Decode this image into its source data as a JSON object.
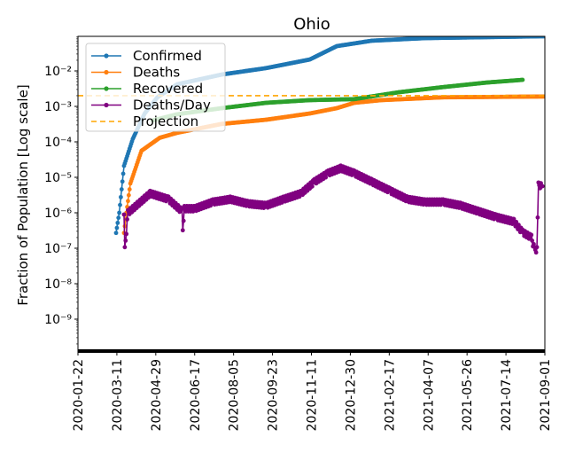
{
  "chart_data": {
    "type": "line",
    "title": "Ohio",
    "xlabel": "",
    "ylabel": "Fraction of Population [Log scale]",
    "yscale": "log",
    "ylim": [
      1.2e-10,
      0.09
    ],
    "xlim": [
      "2020-01-22",
      "2021-09-01"
    ],
    "x_ticks": [
      "2020-01-22",
      "2020-03-11",
      "2020-04-29",
      "2020-06-17",
      "2020-08-05",
      "2020-09-23",
      "2020-11-11",
      "2020-12-30",
      "2021-02-17",
      "2021-04-07",
      "2021-05-26",
      "2021-07-14",
      "2021-09-01"
    ],
    "y_ticks": [
      {
        "value": 0.01,
        "label": "10⁻²"
      },
      {
        "value": 0.001,
        "label": "10⁻³"
      },
      {
        "value": 0.0001,
        "label": "10⁻⁴"
      },
      {
        "value": 1e-05,
        "label": "10⁻⁵"
      },
      {
        "value": 1e-06,
        "label": "10⁻⁶"
      },
      {
        "value": 1e-07,
        "label": "10⁻⁷"
      },
      {
        "value": 1e-08,
        "label": "10⁻⁸"
      },
      {
        "value": 1e-09,
        "label": "10⁻⁹"
      }
    ],
    "legend": "top-left",
    "series": [
      {
        "name": "Confirmed",
        "color": "#1f77b4",
        "style": "line-marker",
        "points": [
          [
            "2020-03-10",
            2.7e-07
          ],
          [
            "2020-03-14",
            1e-06
          ],
          [
            "2020-03-20",
            2.1e-05
          ],
          [
            "2020-03-31",
            0.00012
          ],
          [
            "2020-04-15",
            0.00063
          ],
          [
            "2020-05-01",
            0.0018
          ],
          [
            "2020-05-26",
            0.0042
          ],
          [
            "2020-07-21",
            0.0079
          ],
          [
            "2020-09-15",
            0.012
          ],
          [
            "2020-11-09",
            0.021
          ],
          [
            "2020-12-13",
            0.05
          ],
          [
            "2021-01-26",
            0.071
          ],
          [
            "2021-04-03",
            0.084
          ],
          [
            "2021-09-01",
            0.095
          ]
        ]
      },
      {
        "name": "Deaths",
        "color": "#ff7f0e",
        "style": "line-marker",
        "points": [
          [
            "2020-03-20",
            2.7e-07
          ],
          [
            "2020-03-23",
            1e-06
          ],
          [
            "2020-03-28",
            6.7e-06
          ],
          [
            "2020-04-11",
            5.6e-05
          ],
          [
            "2020-05-04",
            0.00013
          ],
          [
            "2020-05-26",
            0.00018
          ],
          [
            "2020-07-21",
            0.00032
          ],
          [
            "2020-09-15",
            0.00042
          ],
          [
            "2020-11-09",
            0.00063
          ],
          [
            "2020-12-13",
            0.00089
          ],
          [
            "2021-01-04",
            0.00126
          ],
          [
            "2021-02-07",
            0.0015
          ],
          [
            "2021-04-26",
            0.0018
          ],
          [
            "2021-09-01",
            0.0019
          ]
        ]
      },
      {
        "name": "Recovered",
        "color": "#2ca02c",
        "style": "line-marker",
        "points": [
          [
            "2020-04-25",
            0.0004
          ],
          [
            "2020-05-26",
            0.0006
          ],
          [
            "2020-07-21",
            0.00089
          ],
          [
            "2020-09-15",
            0.00126
          ],
          [
            "2020-11-09",
            0.0015
          ],
          [
            "2021-01-04",
            0.0016
          ],
          [
            "2021-03-01",
            0.0025
          ],
          [
            "2021-04-26",
            0.0035
          ],
          [
            "2021-06-20",
            0.0047
          ],
          [
            "2021-08-04",
            0.0056
          ]
        ]
      },
      {
        "name": "Deaths/Day",
        "color": "#800080",
        "style": "line-marker-sparse",
        "points": [
          [
            "2020-03-20",
            7.5e-07
          ],
          [
            "2020-03-21",
            9e-08
          ],
          [
            "2020-03-25",
            1e-06
          ],
          [
            "2020-03-31",
            1.3e-06
          ],
          [
            "2020-04-22",
            3.5e-06
          ],
          [
            "2020-05-15",
            2.4e-06
          ],
          [
            "2020-06-01",
            1.1e-06
          ],
          [
            "2020-06-02",
            2.7e-07
          ],
          [
            "2020-06-04",
            1.3e-06
          ],
          [
            "2020-06-17",
            1.3e-06
          ],
          [
            "2020-07-10",
            2e-06
          ],
          [
            "2020-08-01",
            2.4e-06
          ],
          [
            "2020-08-23",
            1.8e-06
          ],
          [
            "2020-09-15",
            1.6e-06
          ],
          [
            "2020-10-07",
            2.4e-06
          ],
          [
            "2020-10-29",
            3.5e-06
          ],
          [
            "2020-11-15",
            7.5e-06
          ],
          [
            "2020-12-02",
            1.3e-05
          ],
          [
            "2020-12-18",
            1.8e-05
          ],
          [
            "2021-01-04",
            1.3e-05
          ],
          [
            "2021-01-26",
            7.5e-06
          ],
          [
            "2021-02-18",
            4.2e-06
          ],
          [
            "2021-03-12",
            2.4e-06
          ],
          [
            "2021-04-03",
            2e-06
          ],
          [
            "2021-04-26",
            2e-06
          ],
          [
            "2021-05-18",
            1.6e-06
          ],
          [
            "2021-06-09",
            1.1e-06
          ],
          [
            "2021-07-02",
            7.5e-07
          ],
          [
            "2021-07-24",
            5.6e-07
          ],
          [
            "2021-08-04",
            2.8e-07
          ],
          [
            "2021-08-15",
            2e-07
          ],
          [
            "2021-08-19",
            9e-08
          ],
          [
            "2021-08-22",
            9e-08
          ],
          [
            "2021-08-24",
            6e-06
          ],
          [
            "2021-08-29",
            5.6e-06
          ]
        ]
      },
      {
        "name": "Projection",
        "color": "#ffa500",
        "style": "dashed",
        "value": 0.002
      }
    ]
  }
}
